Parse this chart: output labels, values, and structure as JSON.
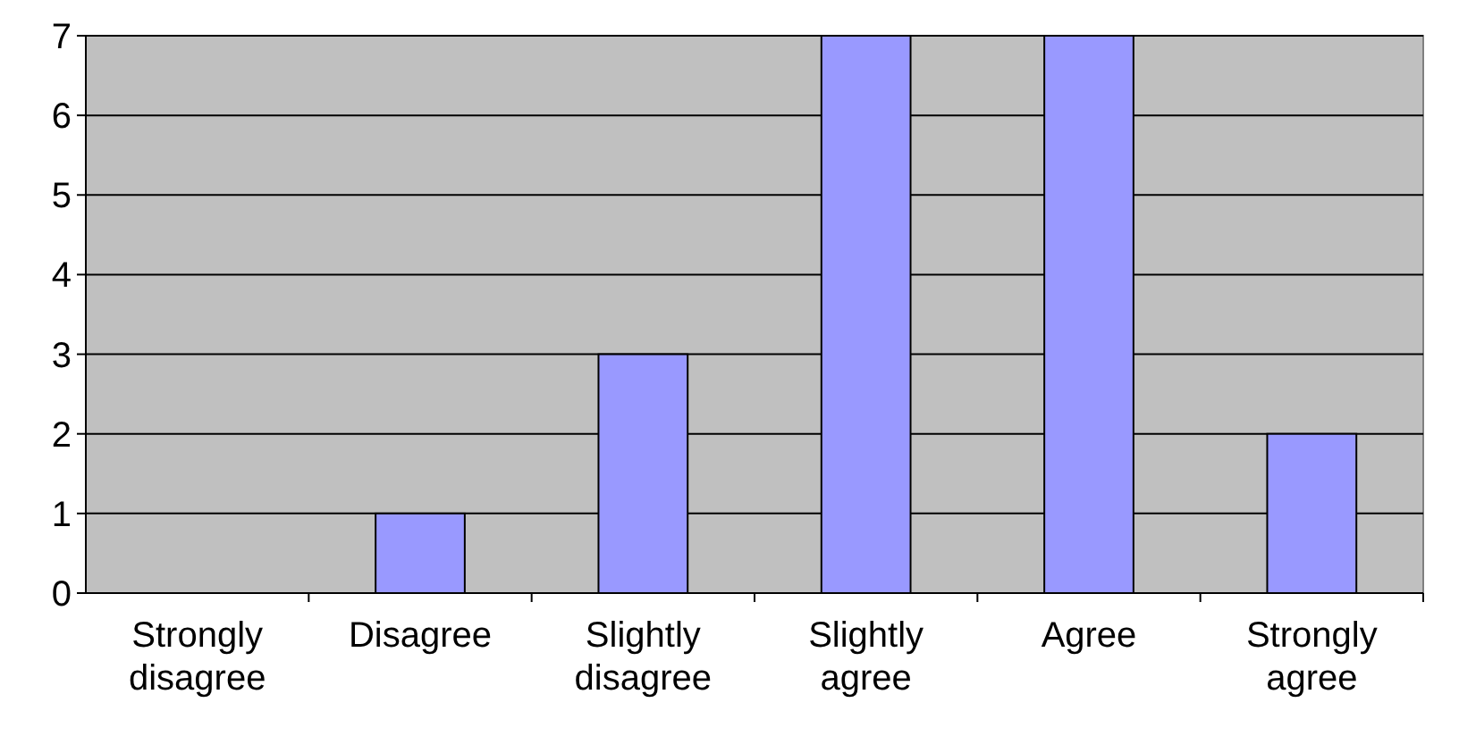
{
  "chart_data": {
    "type": "bar",
    "categories": [
      "Strongly disagree",
      "Disagree",
      "Slightly disagree",
      "Slightly agree",
      "Agree",
      "Strongly agree"
    ],
    "values": [
      0,
      1,
      3,
      7,
      7,
      2
    ],
    "color": "#9999ff",
    "ylim": [
      0,
      7
    ],
    "yticks": [
      0,
      1,
      2,
      3,
      4,
      5,
      6,
      7
    ],
    "grid": "y"
  }
}
